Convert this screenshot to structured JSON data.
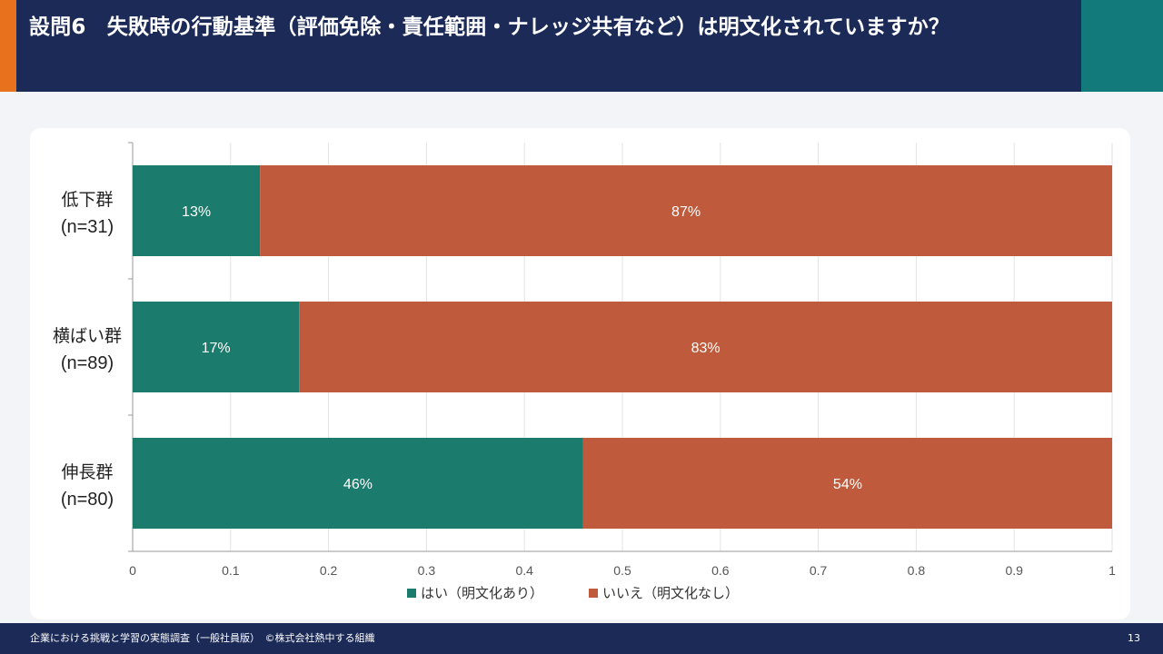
{
  "slide": {
    "title": "設問6　失敗時の行動基準（評価免除・責任範囲・ナレッジ共有など）は明文化されていますか？",
    "footer_text": "企業における挑戦と学習の実態調査（一般社員版）　©株式会社熱中する組織",
    "page_number": "13"
  },
  "chart_data": {
    "type": "bar",
    "orientation": "horizontal",
    "stacked": true,
    "categories": [
      [
        "低下群",
        "(n=31)"
      ],
      [
        "横ばい群",
        "(n=89)"
      ],
      [
        "伸長群",
        "(n=80)"
      ]
    ],
    "series": [
      {
        "name": "はい（明文化あり）",
        "color": "#1b7b6c",
        "values": [
          0.13,
          0.17,
          0.46
        ],
        "labels": [
          "13%",
          "17%",
          "46%"
        ]
      },
      {
        "name": "いいえ（明文化なし）",
        "color": "#bf5b3c",
        "values": [
          0.87,
          0.83,
          0.54
        ],
        "labels": [
          "87%",
          "83%",
          "54%"
        ]
      }
    ],
    "xlim": [
      0,
      1
    ],
    "xticks": [
      "0",
      "0.1",
      "0.2",
      "0.3",
      "0.4",
      "0.5",
      "0.6",
      "0.7",
      "0.8",
      "0.9",
      "1"
    ],
    "grid": true,
    "legend": "bottom",
    "title": "",
    "xlabel": "",
    "ylabel": ""
  }
}
